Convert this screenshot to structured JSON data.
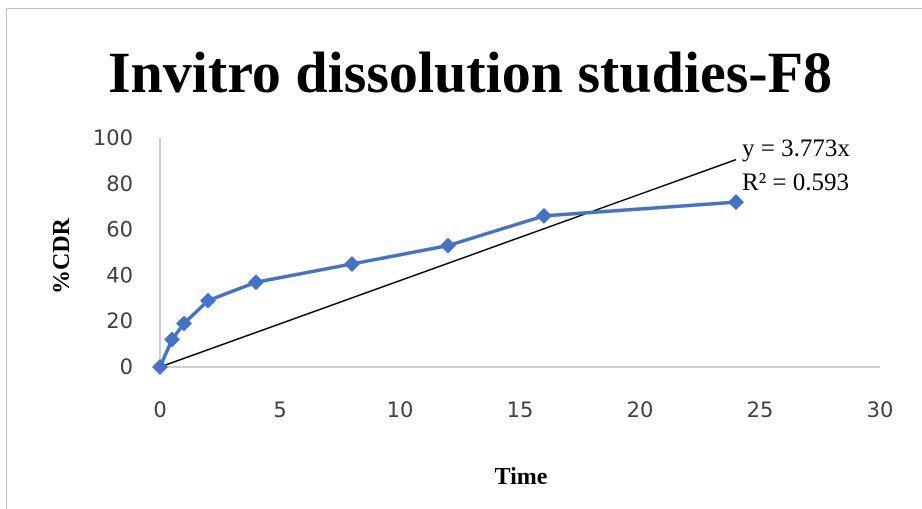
{
  "chart_data": {
    "type": "scatter",
    "title": "Invitro dissolution studies-F8",
    "xlabel": "Time",
    "ylabel": "%CDR",
    "xlim": [
      0,
      30
    ],
    "ylim": [
      0,
      100
    ],
    "x_ticks": [
      "0",
      "5",
      "10",
      "15",
      "20",
      "25",
      "30"
    ],
    "y_ticks": [
      "0",
      "20",
      "40",
      "60",
      "80",
      "100"
    ],
    "grid": false,
    "legend": "none",
    "series": [
      {
        "x": [
          0,
          0.5,
          1,
          2,
          4,
          8,
          12,
          16,
          24
        ],
        "y": [
          0,
          12,
          19,
          29,
          37,
          45,
          53,
          66,
          72
        ],
        "color": "#4472C4",
        "marker": "diamond"
      }
    ],
    "trendline": {
      "slope": 3.773,
      "intercept": 0,
      "x_range": [
        0,
        24
      ],
      "color": "#000000",
      "equation": "y = 3.773x",
      "r2": "R² = 0.593"
    }
  }
}
